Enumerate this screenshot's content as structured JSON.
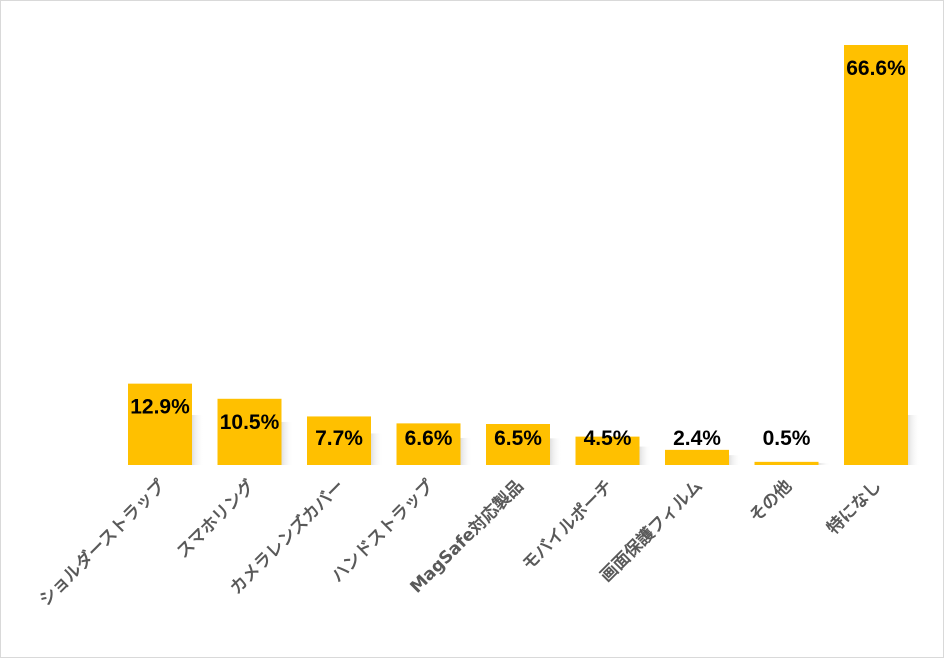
{
  "chart_data": {
    "type": "bar",
    "title": "",
    "xlabel": "",
    "ylabel": "",
    "ylim": [
      0,
      70
    ],
    "grid": false,
    "legend": "none",
    "bar_color": "#ffc000",
    "label_color": "#595959",
    "categories": [
      "ショルダーストラップ",
      "スマホリング",
      "カメラレンズカバー",
      "ハンドストラップ",
      "MagSafe対応製品",
      "モバイルポーチ",
      "画面保護フィルム",
      "その他",
      "特になし"
    ],
    "values": [
      12.9,
      10.5,
      7.7,
      6.6,
      6.5,
      4.5,
      2.4,
      0.5,
      66.6
    ],
    "data_labels": [
      "12.9%",
      "10.5%",
      "7.7%",
      "6.6%",
      "6.5%",
      "4.5%",
      "2.4%",
      "0.5%",
      "66.6%"
    ]
  }
}
